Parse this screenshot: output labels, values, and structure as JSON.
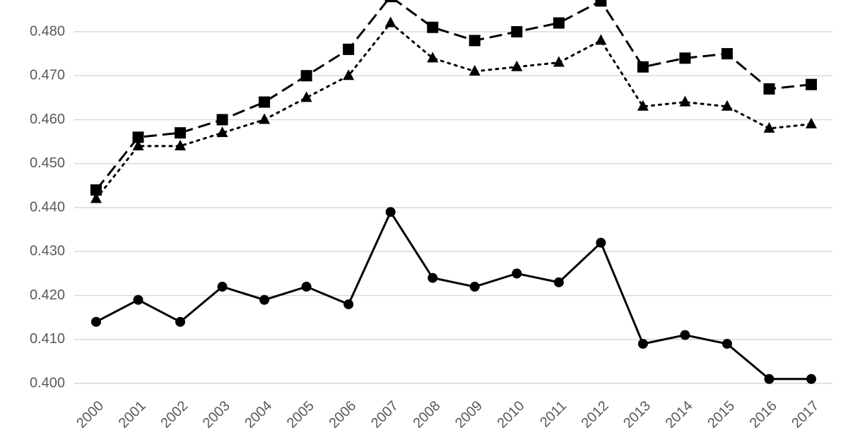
{
  "chart_data": {
    "type": "line",
    "categories": [
      "2000",
      "2001",
      "2002",
      "2003",
      "2004",
      "2005",
      "2006",
      "2007",
      "2008",
      "2009",
      "2010",
      "2011",
      "2012",
      "2013",
      "2014",
      "2015",
      "2016",
      "2017"
    ],
    "series": [
      {
        "color": "#000000",
        "marker": "square",
        "dash": "dashed",
        "values": [
          0.444,
          0.456,
          0.457,
          0.46,
          0.464,
          0.47,
          0.476,
          0.488,
          0.481,
          0.478,
          0.48,
          0.482,
          0.487,
          0.472,
          0.474,
          0.475,
          0.467,
          0.468
        ]
      },
      {
        "color": "#000000",
        "marker": "triangle",
        "dash": "dotted",
        "values": [
          0.442,
          0.454,
          0.454,
          0.457,
          0.46,
          0.465,
          0.47,
          0.482,
          0.474,
          0.471,
          0.472,
          0.473,
          0.478,
          0.463,
          0.464,
          0.463,
          0.458,
          0.459
        ]
      },
      {
        "color": "#000000",
        "marker": "circle",
        "dash": "solid",
        "values": [
          0.414,
          0.419,
          0.414,
          0.422,
          0.419,
          0.422,
          0.418,
          0.439,
          0.424,
          0.422,
          0.425,
          0.423,
          0.432,
          0.409,
          0.411,
          0.409,
          0.401,
          0.401
        ]
      }
    ],
    "ylim": [
      0.4,
      0.487
    ],
    "yticks": [
      {
        "value": 0.4,
        "label": "0.400"
      },
      {
        "value": 0.41,
        "label": "0.410"
      },
      {
        "value": 0.42,
        "label": "0.420"
      },
      {
        "value": 0.43,
        "label": "0.430"
      },
      {
        "value": 0.44,
        "label": "0.440"
      },
      {
        "value": 0.45,
        "label": "0.450"
      },
      {
        "value": 0.46,
        "label": "0.460"
      },
      {
        "value": 0.47,
        "label": "0.470"
      },
      {
        "value": 0.48,
        "label": "0.480"
      }
    ],
    "grid": true
  }
}
